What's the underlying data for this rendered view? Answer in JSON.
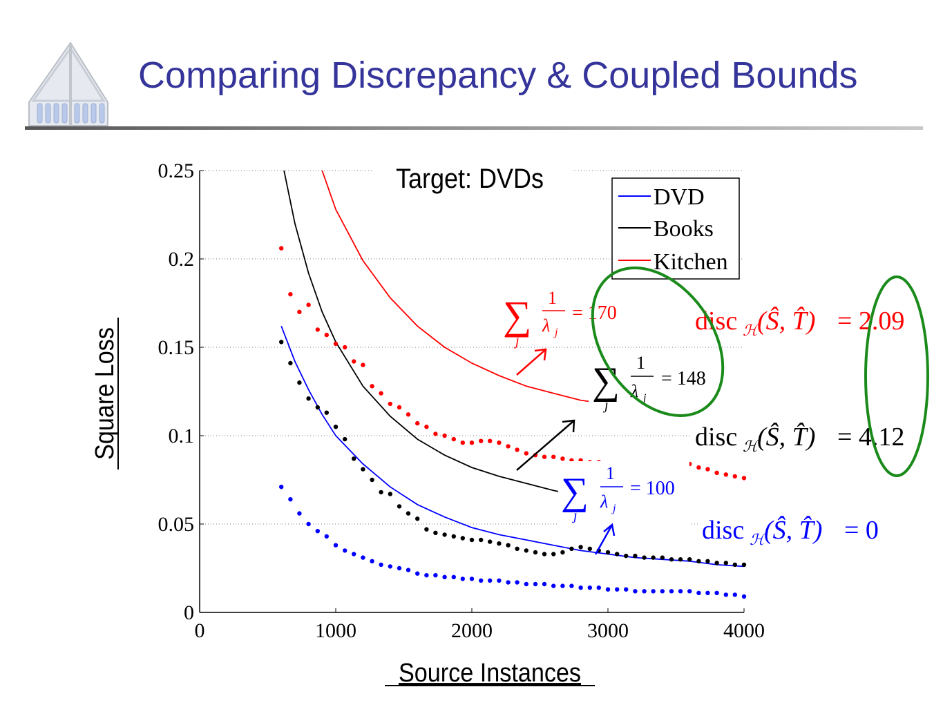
{
  "slide": {
    "title": "Comparing Discrepancy & Coupled Bounds"
  },
  "colors": {
    "title": "#34349b",
    "dvd": "#0000ff",
    "books": "#000000",
    "kitchen": "#ff0000",
    "ellipse": "#1a8a1a"
  },
  "chart_data": {
    "type": "line",
    "title": "Target: DVDs",
    "xlabel": "Source Instances",
    "ylabel": "Square Loss",
    "xlim": [
      0,
      4000
    ],
    "ylim": [
      0,
      0.25
    ],
    "xticks": [
      "0",
      "1000",
      "2000",
      "3000",
      "4000"
    ],
    "yticks": [
      "0",
      "0.05",
      "0.1",
      "0.15",
      "0.2",
      "0.25"
    ],
    "grid": "horizontal-dotted",
    "legend": {
      "placement": "top-right",
      "entries": [
        "DVD",
        "Books",
        "Kitchen"
      ]
    },
    "series": [
      {
        "name": "DVD",
        "color": "#0000ff",
        "curve": {
          "x": [
            600,
            700,
            800,
            900,
            1000,
            1200,
            1400,
            1600,
            1800,
            2000,
            2200,
            2400,
            2600,
            2800,
            3000,
            3200,
            3400,
            3600,
            3800,
            4000
          ],
          "y": [
            0.162,
            0.142,
            0.126,
            0.112,
            0.1,
            0.084,
            0.071,
            0.061,
            0.054,
            0.048,
            0.044,
            0.041,
            0.038,
            0.035,
            0.033,
            0.031,
            0.03,
            0.029,
            0.027,
            0.026
          ]
        },
        "points": {
          "x": [
            600,
            667,
            733,
            800,
            867,
            933,
            1000,
            1067,
            1133,
            1200,
            1267,
            1333,
            1400,
            1467,
            1533,
            1600,
            1667,
            1733,
            1800,
            1867,
            1933,
            2000,
            2067,
            2133,
            2200,
            2267,
            2333,
            2400,
            2467,
            2533,
            2600,
            2667,
            2733,
            2800,
            2867,
            2933,
            3000,
            3067,
            3133,
            3200,
            3267,
            3333,
            3400,
            3467,
            3533,
            3600,
            3667,
            3733,
            3800,
            3867,
            3933,
            4000
          ],
          "y": [
            0.071,
            0.064,
            0.056,
            0.05,
            0.046,
            0.043,
            0.038,
            0.035,
            0.033,
            0.031,
            0.029,
            0.027,
            0.026,
            0.025,
            0.024,
            0.022,
            0.021,
            0.021,
            0.02,
            0.02,
            0.019,
            0.019,
            0.018,
            0.018,
            0.018,
            0.017,
            0.017,
            0.016,
            0.016,
            0.016,
            0.015,
            0.015,
            0.015,
            0.014,
            0.014,
            0.014,
            0.013,
            0.013,
            0.013,
            0.012,
            0.012,
            0.012,
            0.012,
            0.012,
            0.012,
            0.012,
            0.011,
            0.011,
            0.011,
            0.01,
            0.01,
            0.009
          ]
        }
      },
      {
        "name": "Books",
        "color": "#000000",
        "curve": {
          "x": [
            620,
            700,
            800,
            900,
            1000,
            1200,
            1400,
            1600,
            1800,
            2000,
            2200,
            2400,
            2600,
            2660
          ],
          "y": [
            0.25,
            0.22,
            0.192,
            0.17,
            0.153,
            0.128,
            0.111,
            0.098,
            0.089,
            0.082,
            0.077,
            0.073,
            0.069,
            0.068
          ]
        },
        "points": {
          "x": [
            600,
            667,
            733,
            800,
            867,
            933,
            1000,
            1067,
            1133,
            1200,
            1267,
            1333,
            1400,
            1467,
            1533,
            1600,
            1667,
            1733,
            1800,
            1867,
            1933,
            2000,
            2067,
            2133,
            2200,
            2267,
            2333,
            2400,
            2467,
            2533,
            2600,
            2667,
            2733,
            2800,
            2867,
            2933,
            3000,
            3067,
            3133,
            3200,
            3267,
            3333,
            3400,
            3467,
            3533,
            3600,
            3667,
            3733,
            3800,
            3867,
            3933,
            4000
          ],
          "y": [
            0.153,
            0.141,
            0.13,
            0.121,
            0.116,
            0.113,
            0.105,
            0.098,
            0.087,
            0.081,
            0.075,
            0.068,
            0.067,
            0.06,
            0.056,
            0.053,
            0.047,
            0.045,
            0.044,
            0.043,
            0.042,
            0.041,
            0.041,
            0.04,
            0.039,
            0.038,
            0.036,
            0.035,
            0.034,
            0.033,
            0.033,
            0.034,
            0.036,
            0.037,
            0.036,
            0.035,
            0.034,
            0.033,
            0.032,
            0.032,
            0.031,
            0.031,
            0.031,
            0.03,
            0.03,
            0.03,
            0.029,
            0.029,
            0.028,
            0.028,
            0.027,
            0.027
          ]
        }
      },
      {
        "name": "Kitchen",
        "color": "#ff0000",
        "curve": {
          "x": [
            900,
            1000,
            1200,
            1400,
            1600,
            1800,
            2000,
            2200,
            2400,
            2600,
            2800,
            2900
          ],
          "y": [
            0.25,
            0.228,
            0.199,
            0.178,
            0.162,
            0.15,
            0.141,
            0.134,
            0.128,
            0.124,
            0.12,
            0.119
          ]
        },
        "points": {
          "x": [
            600,
            667,
            733,
            800,
            867,
            933,
            1000,
            1067,
            1133,
            1200,
            1267,
            1333,
            1400,
            1467,
            1533,
            1600,
            1667,
            1733,
            1800,
            1867,
            1933,
            2000,
            2067,
            2133,
            2200,
            2267,
            2333,
            2400,
            2467,
            2533,
            2600,
            2667,
            2733,
            2800,
            2867,
            2933,
            3600,
            3667,
            3733,
            3800,
            3867,
            3933,
            4000
          ],
          "y": [
            0.206,
            0.18,
            0.17,
            0.174,
            0.16,
            0.157,
            0.152,
            0.15,
            0.142,
            0.14,
            0.128,
            0.124,
            0.118,
            0.116,
            0.112,
            0.107,
            0.105,
            0.101,
            0.1,
            0.098,
            0.096,
            0.096,
            0.097,
            0.097,
            0.096,
            0.094,
            0.092,
            0.09,
            0.089,
            0.088,
            0.088,
            0.087,
            0.086,
            0.086,
            0.085,
            0.085,
            0.084,
            0.082,
            0.081,
            0.079,
            0.078,
            0.077,
            0.076
          ]
        }
      }
    ]
  },
  "annotations": {
    "sum_symbol": "∑",
    "sum_index": "j",
    "frac_num": "1",
    "frac_den": "λ",
    "frac_den_sub": "j",
    "kitchen_sum_value": "= 170",
    "books_sum_value": "= 148",
    "dvd_sum_value": "= 100",
    "disc_label": "disc",
    "disc_sub": "ℋ",
    "disc_args": "(Ŝ, T̂)",
    "kitchen_disc_value": "= 2.09",
    "books_disc_value": "= 4.12",
    "dvd_disc_value": "= 0"
  }
}
